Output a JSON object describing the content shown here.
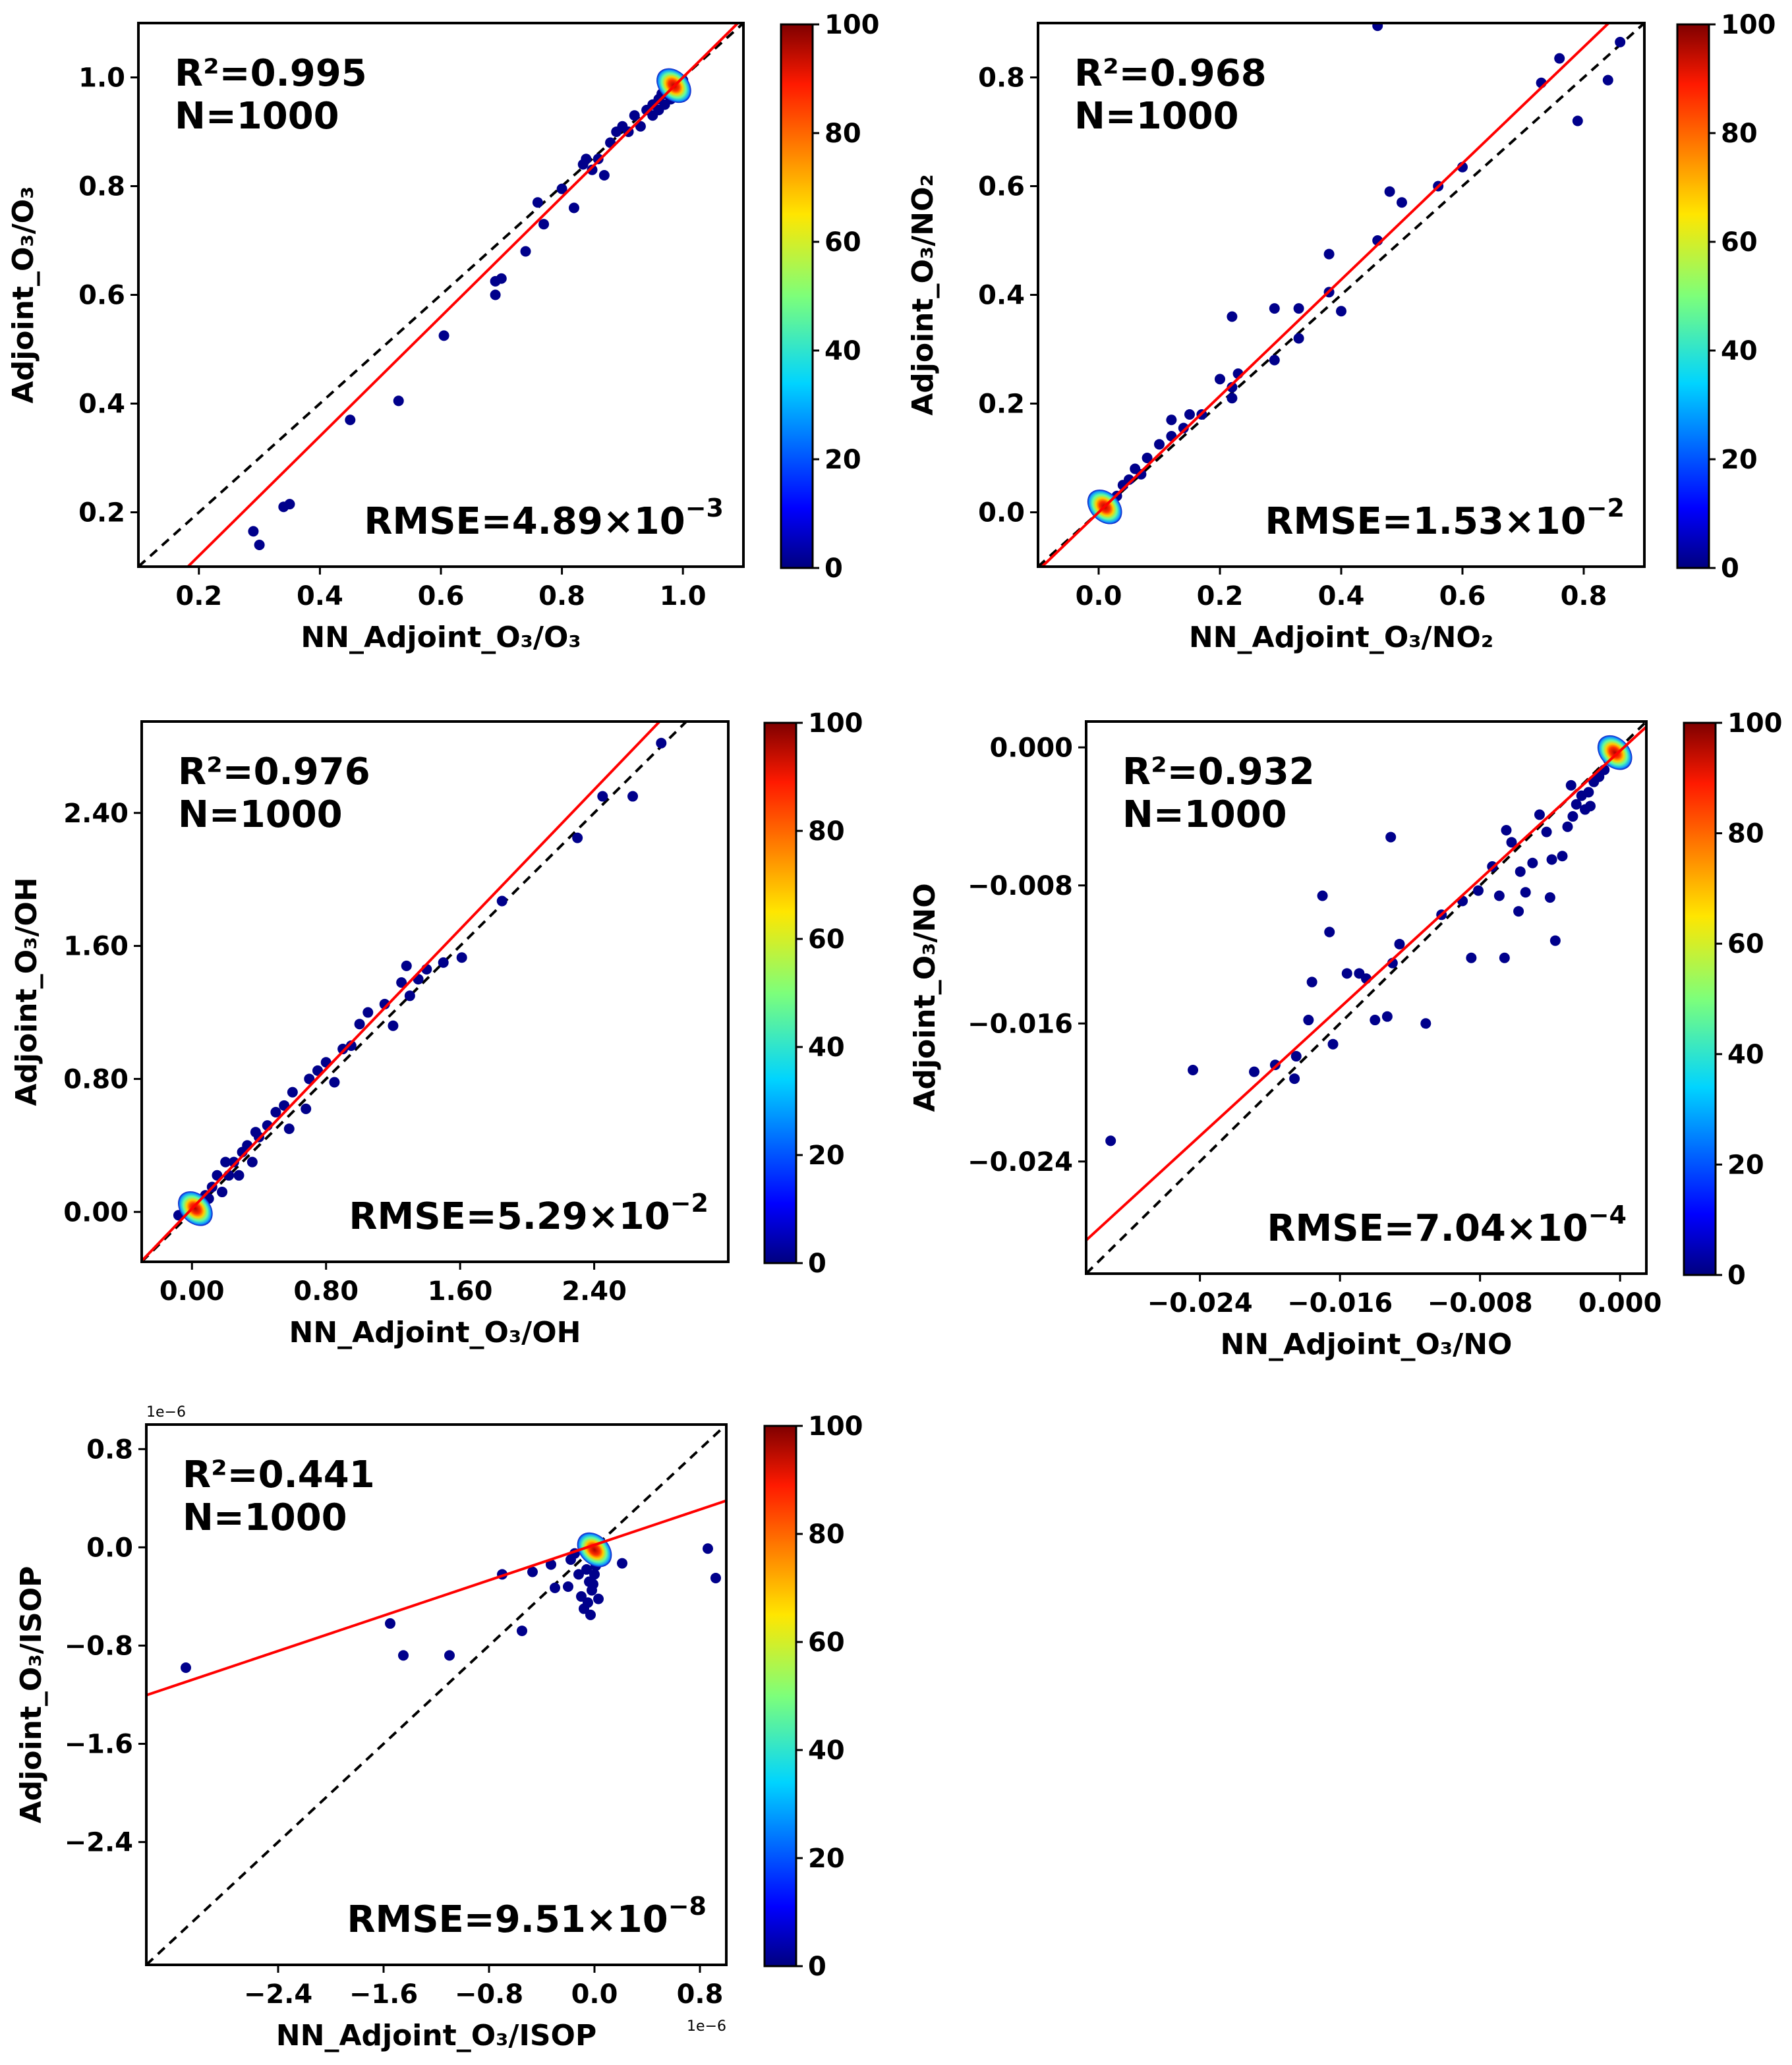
{
  "chart_data": [
    {
      "type": "scatter",
      "xlabel": "NN_Adjoint_O₃/O₃",
      "ylabel": "Adjoint_O₃/O₃",
      "xlim": [
        0.1,
        1.1
      ],
      "ylim": [
        0.1,
        1.1
      ],
      "xticks": [
        0.2,
        0.4,
        0.6,
        0.8,
        1.0
      ],
      "yticks": [
        0.2,
        0.4,
        0.6,
        0.8,
        1.0
      ],
      "xtick_labels": [
        "0.2",
        "0.4",
        "0.6",
        "0.8",
        "1.0"
      ],
      "ytick_labels": [
        "0.2",
        "0.4",
        "0.6",
        "0.8",
        "1.0"
      ],
      "r2_text": "R²=0.995",
      "n_text": "N=1000",
      "rmse_text": "RMSE=4.89×10",
      "rmse_exp": "−3",
      "fit_line": {
        "slope": 1.1,
        "intercept": -0.1
      },
      "identity_line": true,
      "density_core": [
        0.985,
        0.985
      ],
      "points": [
        [
          0.29,
          0.165
        ],
        [
          0.3,
          0.14
        ],
        [
          0.35,
          0.215
        ],
        [
          0.34,
          0.21
        ],
        [
          0.45,
          0.37
        ],
        [
          0.53,
          0.405
        ],
        [
          0.605,
          0.525
        ],
        [
          0.69,
          0.6
        ],
        [
          0.69,
          0.625
        ],
        [
          0.7,
          0.63
        ],
        [
          0.74,
          0.68
        ],
        [
          0.77,
          0.73
        ],
        [
          0.76,
          0.77
        ],
        [
          0.8,
          0.795
        ],
        [
          0.82,
          0.76
        ],
        [
          0.835,
          0.84
        ],
        [
          0.84,
          0.85
        ],
        [
          0.85,
          0.83
        ],
        [
          0.86,
          0.85
        ],
        [
          0.87,
          0.82
        ],
        [
          0.88,
          0.88
        ],
        [
          0.89,
          0.9
        ],
        [
          0.9,
          0.91
        ],
        [
          0.91,
          0.9
        ],
        [
          0.92,
          0.93
        ],
        [
          0.93,
          0.91
        ],
        [
          0.94,
          0.94
        ],
        [
          0.95,
          0.95
        ],
        [
          0.95,
          0.93
        ],
        [
          0.96,
          0.96
        ],
        [
          0.965,
          0.97
        ],
        [
          0.97,
          0.95
        ],
        [
          0.975,
          0.98
        ],
        [
          0.98,
          0.96
        ],
        [
          0.98,
          0.99
        ],
        [
          0.99,
          0.98
        ],
        [
          0.995,
          0.99
        ],
        [
          1.0,
          0.995
        ],
        [
          0.96,
          0.94
        ],
        [
          0.97,
          0.97
        ]
      ],
      "colorbar": {
        "min": 0,
        "max": 100,
        "ticks": [
          "0",
          "20",
          "40",
          "60",
          "80",
          "100"
        ]
      }
    },
    {
      "type": "scatter",
      "xlabel": "NN_Adjoint_O₃/NO₂",
      "ylabel": "Adjoint_O₃/NO₂",
      "xlim": [
        -0.1,
        0.9
      ],
      "ylim": [
        -0.1,
        0.9
      ],
      "xticks": [
        0.0,
        0.2,
        0.4,
        0.6,
        0.8
      ],
      "yticks": [
        0.0,
        0.2,
        0.4,
        0.6,
        0.8
      ],
      "xtick_labels": [
        "0.0",
        "0.2",
        "0.4",
        "0.6",
        "0.8"
      ],
      "ytick_labels": [
        "0.0",
        "0.2",
        "0.4",
        "0.6",
        "0.8"
      ],
      "r2_text": "R²=0.968",
      "n_text": "N=1000",
      "rmse_text": "RMSE=1.53×10",
      "rmse_exp": "−2",
      "fit_line": {
        "slope": 1.07,
        "intercept": 0.0
      },
      "identity_line": true,
      "density_core": [
        0.01,
        0.01
      ],
      "points": [
        [
          0.46,
          0.895
        ],
        [
          0.76,
          0.835
        ],
        [
          0.79,
          0.72
        ],
        [
          0.84,
          0.795
        ],
        [
          0.86,
          0.865
        ],
        [
          0.73,
          0.79
        ],
        [
          0.6,
          0.635
        ],
        [
          0.56,
          0.6
        ],
        [
          0.48,
          0.59
        ],
        [
          0.5,
          0.57
        ],
        [
          0.46,
          0.5
        ],
        [
          0.38,
          0.475
        ],
        [
          0.38,
          0.405
        ],
        [
          0.4,
          0.37
        ],
        [
          0.33,
          0.375
        ],
        [
          0.33,
          0.32
        ],
        [
          0.29,
          0.375
        ],
        [
          0.29,
          0.28
        ],
        [
          0.22,
          0.36
        ],
        [
          0.23,
          0.255
        ],
        [
          0.22,
          0.23
        ],
        [
          0.22,
          0.21
        ],
        [
          0.2,
          0.245
        ],
        [
          0.17,
          0.18
        ],
        [
          0.15,
          0.18
        ],
        [
          0.14,
          0.155
        ],
        [
          0.12,
          0.17
        ],
        [
          0.12,
          0.14
        ],
        [
          0.1,
          0.125
        ],
        [
          0.08,
          0.1
        ],
        [
          0.07,
          0.07
        ],
        [
          0.05,
          0.06
        ],
        [
          0.04,
          0.05
        ],
        [
          0.06,
          0.08
        ],
        [
          0.03,
          0.03
        ],
        [
          0.02,
          0.02
        ]
      ],
      "colorbar": {
        "min": 0,
        "max": 100,
        "ticks": [
          "0",
          "20",
          "40",
          "60",
          "80",
          "100"
        ]
      }
    },
    {
      "type": "scatter",
      "xlabel": "NN_Adjoint_O₃/OH",
      "ylabel": "Adjoint_O₃/OH",
      "xlim": [
        -0.3,
        3.2
      ],
      "ylim": [
        -0.3,
        2.95
      ],
      "xticks": [
        0.0,
        0.8,
        1.6,
        2.4
      ],
      "yticks": [
        0.0,
        0.8,
        1.6,
        2.4
      ],
      "xtick_labels": [
        "0.00",
        "0.80",
        "1.60",
        "2.40"
      ],
      "ytick_labels": [
        "0.00",
        "0.80",
        "1.60",
        "2.40"
      ],
      "r2_text": "R²=0.976",
      "n_text": "N=1000",
      "rmse_text": "RMSE=5.29×10",
      "rmse_exp": "−2",
      "fit_line": {
        "slope": 1.05,
        "intercept": 0.02
      },
      "identity_line": true,
      "density_core": [
        0.02,
        0.02
      ],
      "points": [
        [
          2.8,
          2.82
        ],
        [
          2.45,
          2.5
        ],
        [
          2.63,
          2.5
        ],
        [
          2.3,
          2.25
        ],
        [
          1.85,
          1.87
        ],
        [
          1.61,
          1.53
        ],
        [
          1.5,
          1.5
        ],
        [
          1.4,
          1.46
        ],
        [
          1.35,
          1.4
        ],
        [
          1.28,
          1.48
        ],
        [
          1.25,
          1.38
        ],
        [
          1.15,
          1.25
        ],
        [
          1.05,
          1.2
        ],
        [
          1.0,
          1.13
        ],
        [
          0.95,
          1.0
        ],
        [
          0.9,
          0.98
        ],
        [
          0.8,
          0.9
        ],
        [
          0.75,
          0.85
        ],
        [
          0.7,
          0.8
        ],
        [
          0.6,
          0.72
        ],
        [
          0.55,
          0.64
        ],
        [
          0.5,
          0.6
        ],
        [
          0.45,
          0.52
        ],
        [
          0.4,
          0.45
        ],
        [
          0.38,
          0.48
        ],
        [
          0.33,
          0.4
        ],
        [
          0.3,
          0.36
        ],
        [
          0.25,
          0.3
        ],
        [
          0.22,
          0.22
        ],
        [
          0.2,
          0.3
        ],
        [
          0.15,
          0.22
        ],
        [
          0.12,
          0.15
        ],
        [
          0.1,
          0.08
        ],
        [
          0.08,
          0.1
        ],
        [
          0.05,
          0.05
        ],
        [
          -0.08,
          -0.02
        ],
        [
          0.18,
          0.12
        ],
        [
          0.28,
          0.22
        ],
        [
          0.36,
          0.3
        ],
        [
          0.58,
          0.5
        ],
        [
          0.68,
          0.62
        ],
        [
          0.85,
          0.78
        ],
        [
          1.3,
          1.3
        ],
        [
          1.2,
          1.12
        ]
      ],
      "colorbar": {
        "min": 0,
        "max": 100,
        "ticks": [
          "0",
          "20",
          "40",
          "60",
          "80",
          "100"
        ]
      }
    },
    {
      "type": "scatter",
      "xlabel": "NN_Adjoint_O₃/NO",
      "ylabel": "Adjoint_O₃/NO",
      "xlim": [
        -0.0305,
        0.0015
      ],
      "ylim": [
        -0.0305,
        0.0015
      ],
      "xticks": [
        -0.024,
        -0.016,
        -0.008,
        0.0
      ],
      "yticks": [
        -0.024,
        -0.016,
        -0.008,
        0.0
      ],
      "xtick_labels": [
        "−0.024",
        "−0.016",
        "−0.008",
        "0.000"
      ],
      "ytick_labels": [
        "−0.024",
        "−0.016",
        "−0.008",
        "0.000"
      ],
      "r2_text": "R²=0.932",
      "n_text": "N=1000",
      "rmse_text": "RMSE=7.04×10",
      "rmse_exp": "−4",
      "fit_line": {
        "slope": 0.93,
        "intercept": -0.0002
      },
      "identity_line": true,
      "density_core": [
        -0.0003,
        -0.0003
      ],
      "points": [
        [
          -0.0291,
          -0.0228
        ],
        [
          -0.0244,
          -0.0187
        ],
        [
          -0.0209,
          -0.0188
        ],
        [
          -0.0197,
          -0.0184
        ],
        [
          -0.0186,
          -0.0192
        ],
        [
          -0.0185,
          -0.0179
        ],
        [
          -0.0178,
          -0.0158
        ],
        [
          -0.0176,
          -0.0136
        ],
        [
          -0.0164,
          -0.0172
        ],
        [
          -0.0166,
          -0.0107
        ],
        [
          -0.0156,
          -0.0131
        ],
        [
          -0.0149,
          -0.0131
        ],
        [
          -0.0145,
          -0.0134
        ],
        [
          -0.014,
          -0.0158
        ],
        [
          -0.0133,
          -0.0156
        ],
        [
          -0.013,
          -0.0125
        ],
        [
          -0.0126,
          -0.0114
        ],
        [
          -0.0111,
          -0.016
        ],
        [
          -0.0102,
          -0.0097
        ],
        [
          -0.009,
          -0.0089
        ],
        [
          -0.0085,
          -0.0122
        ],
        [
          -0.0081,
          -0.0083
        ],
        [
          -0.0073,
          -0.0069
        ],
        [
          -0.0069,
          -0.0086
        ],
        [
          -0.0066,
          -0.0122
        ],
        [
          -0.0065,
          -0.0048
        ],
        [
          -0.0062,
          -0.0055
        ],
        [
          -0.0057,
          -0.0072
        ],
        [
          -0.0058,
          -0.0095
        ],
        [
          -0.0054,
          -0.0084
        ],
        [
          -0.005,
          -0.0067
        ],
        [
          -0.0046,
          -0.0039
        ],
        [
          -0.0042,
          -0.0049
        ],
        [
          -0.004,
          -0.0087
        ],
        [
          -0.0039,
          -0.0065
        ],
        [
          -0.0037,
          -0.0112
        ],
        [
          -0.0033,
          -0.0063
        ],
        [
          -0.003,
          -0.0046
        ],
        [
          -0.0027,
          -0.004
        ],
        [
          -0.0025,
          -0.0033
        ],
        [
          -0.0022,
          -0.0028
        ],
        [
          -0.002,
          -0.0036
        ],
        [
          -0.0018,
          -0.0026
        ],
        [
          -0.0015,
          -0.002
        ],
        [
          -0.0012,
          -0.0017
        ],
        [
          -0.0009,
          -0.0013
        ],
        [
          -0.0017,
          -0.0034
        ],
        [
          -0.0028,
          -0.0022
        ],
        [
          -0.0131,
          -0.0052
        ],
        [
          -0.017,
          -0.0086
        ]
      ],
      "colorbar": {
        "min": 0,
        "max": 100,
        "ticks": [
          "0",
          "20",
          "40",
          "60",
          "80",
          "100"
        ]
      }
    },
    {
      "type": "scatter",
      "xlabel": "NN_Adjoint_O₃/ISOP",
      "ylabel": "Adjoint_O₃/ISOP",
      "xlim": [
        -3.4,
        1.0
      ],
      "ylim": [
        -3.4,
        1.0
      ],
      "xticks": [
        -2.4,
        -1.6,
        -0.8,
        0.0,
        0.8
      ],
      "yticks": [
        -2.4,
        -1.6,
        -0.8,
        0.0,
        0.8
      ],
      "xtick_labels": [
        "−2.4",
        "−1.6",
        "−0.8",
        "0.0",
        "0.8"
      ],
      "ytick_labels": [
        "−2.4",
        "−1.6",
        "−0.8",
        "0.0",
        "0.8"
      ],
      "offset_text": "1e−6",
      "r2_text": "R²=0.441",
      "n_text": "N=1000",
      "rmse_text": "RMSE=9.51×10",
      "rmse_exp": "−8",
      "fit_line": {
        "slope": 0.36,
        "intercept": 0.02
      },
      "identity_line": true,
      "density_core": [
        0.0,
        -0.02
      ],
      "points": [
        [
          -3.1,
          -0.98
        ],
        [
          -1.55,
          -0.62
        ],
        [
          -1.45,
          -0.88
        ],
        [
          -1.1,
          -0.88
        ],
        [
          -0.7,
          -0.22
        ],
        [
          -0.55,
          -0.68
        ],
        [
          -0.47,
          -0.2
        ],
        [
          -0.33,
          -0.14
        ],
        [
          -0.3,
          -0.33
        ],
        [
          -0.2,
          -0.32
        ],
        [
          -0.18,
          -0.1
        ],
        [
          -0.1,
          -0.4
        ],
        [
          -0.08,
          -0.5
        ],
        [
          -0.05,
          -0.45
        ],
        [
          -0.03,
          -0.55
        ],
        [
          -0.02,
          -0.35
        ],
        [
          -0.01,
          -0.3
        ],
        [
          0.0,
          -0.22
        ],
        [
          0.01,
          -0.15
        ],
        [
          0.02,
          -0.1
        ],
        [
          0.21,
          -0.13
        ],
        [
          0.86,
          -0.01
        ],
        [
          0.92,
          -0.25
        ],
        [
          -0.12,
          -0.22
        ],
        [
          -0.06,
          -0.18
        ],
        [
          -0.04,
          -0.28
        ],
        [
          0.03,
          -0.42
        ],
        [
          -0.15,
          -0.05
        ]
      ],
      "colorbar": {
        "min": 0,
        "max": 100,
        "ticks": [
          "0",
          "20",
          "40",
          "60",
          "80",
          "100"
        ]
      }
    }
  ]
}
